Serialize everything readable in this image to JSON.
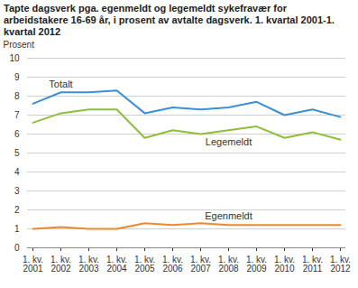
{
  "chart_data": {
    "type": "line",
    "title": "Tapte dagsverk pga. egenmeldt og legemeldt sykefravær for arbeidstakere 16-69 år, i prosent av avtalte dagsverk. 1. kvartal 2001-1. kvartal 2012",
    "y_label": "Prosent",
    "categories": [
      "1. kv. 2001",
      "1. kv. 2002",
      "1. kv. 2003",
      "1. kv. 2004",
      "1. kv. 2005",
      "1. kv. 2006",
      "1. kv. 2007",
      "1. kv. 2008",
      "1. kv. 2009",
      "1. kv. 2010",
      "1. kv. 2011",
      "1. kv. 2012"
    ],
    "series": [
      {
        "name": "Totalt",
        "color": "#3b8fd4",
        "values": [
          7.6,
          8.2,
          8.2,
          8.3,
          7.1,
          7.4,
          7.3,
          7.4,
          7.7,
          7.0,
          7.3,
          6.9
        ]
      },
      {
        "name": "Legemeldt",
        "color": "#8dbf3a",
        "values": [
          6.6,
          7.1,
          7.3,
          7.3,
          5.8,
          6.2,
          6.0,
          6.2,
          6.4,
          5.8,
          6.1,
          5.7
        ]
      },
      {
        "name": "Egenmeldt",
        "color": "#ec8a2c",
        "values": [
          1.0,
          1.1,
          1.0,
          1.0,
          1.3,
          1.2,
          1.3,
          1.2,
          1.2,
          1.2,
          1.2,
          1.2
        ]
      }
    ],
    "ylim": [
      0,
      10
    ],
    "yticks": [
      0,
      1,
      2,
      3,
      4,
      5,
      6,
      7,
      8,
      9,
      10
    ],
    "grid": true
  }
}
